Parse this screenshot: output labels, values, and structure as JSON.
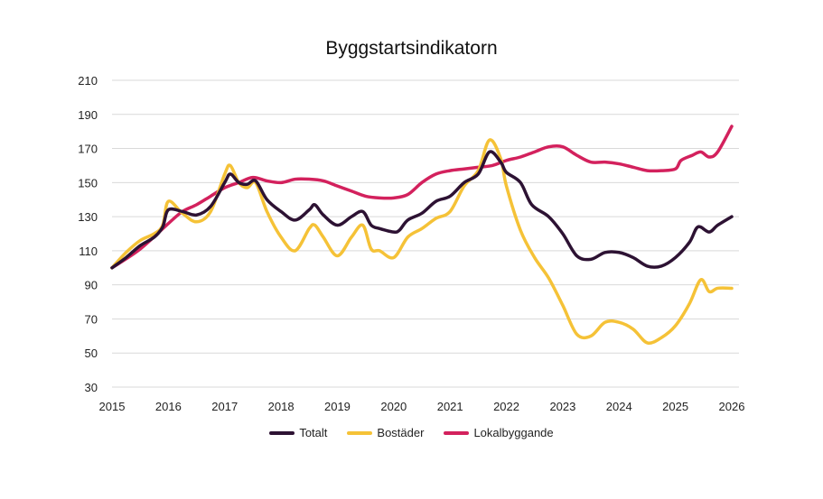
{
  "chart_data": {
    "type": "line",
    "title": "Byggstartsindikatorn",
    "xlabel": "",
    "ylabel": "",
    "xlim": [
      2015,
      2026
    ],
    "ylim": [
      30,
      210
    ],
    "yticks": [
      30,
      50,
      70,
      90,
      110,
      130,
      150,
      170,
      190,
      210
    ],
    "xticks": [
      2015,
      2016,
      2017,
      2018,
      2019,
      2020,
      2021,
      2022,
      2023,
      2024,
      2025,
      2026
    ],
    "grid": true,
    "legend": "bottom",
    "series": [
      {
        "name": "Totalt",
        "color": "#2d1233",
        "points": [
          [
            2015,
            100
          ],
          [
            2015.25,
            106
          ],
          [
            2015.5,
            113
          ],
          [
            2015.75,
            118
          ],
          [
            2015.9,
            124
          ],
          [
            2016,
            134
          ],
          [
            2016.25,
            133
          ],
          [
            2016.5,
            131
          ],
          [
            2016.75,
            136
          ],
          [
            2017,
            150
          ],
          [
            2017.1,
            155
          ],
          [
            2017.25,
            150
          ],
          [
            2017.4,
            149
          ],
          [
            2017.55,
            151
          ],
          [
            2017.75,
            140
          ],
          [
            2018,
            133
          ],
          [
            2018.25,
            128
          ],
          [
            2018.5,
            134
          ],
          [
            2018.6,
            137
          ],
          [
            2018.75,
            131
          ],
          [
            2019,
            125
          ],
          [
            2019.25,
            130
          ],
          [
            2019.45,
            133
          ],
          [
            2019.6,
            125
          ],
          [
            2019.75,
            123
          ],
          [
            2020,
            121
          ],
          [
            2020.1,
            122
          ],
          [
            2020.25,
            128
          ],
          [
            2020.5,
            132
          ],
          [
            2020.75,
            139
          ],
          [
            2021,
            142
          ],
          [
            2021.25,
            150
          ],
          [
            2021.5,
            155
          ],
          [
            2021.7,
            168
          ],
          [
            2021.9,
            162
          ],
          [
            2022,
            156
          ],
          [
            2022.25,
            150
          ],
          [
            2022.45,
            137
          ],
          [
            2022.75,
            130
          ],
          [
            2023,
            120
          ],
          [
            2023.25,
            107
          ],
          [
            2023.5,
            105
          ],
          [
            2023.75,
            109
          ],
          [
            2024,
            109
          ],
          [
            2024.25,
            106
          ],
          [
            2024.5,
            101
          ],
          [
            2024.75,
            101
          ],
          [
            2025,
            106
          ],
          [
            2025.25,
            115
          ],
          [
            2025.4,
            124
          ],
          [
            2025.6,
            121
          ],
          [
            2025.75,
            125
          ],
          [
            2026,
            130
          ]
        ]
      },
      {
        "name": "Bostäder",
        "color": "#f5c237",
        "points": [
          [
            2015,
            100
          ],
          [
            2015.25,
            109
          ],
          [
            2015.5,
            116
          ],
          [
            2015.75,
            120
          ],
          [
            2015.9,
            125
          ],
          [
            2016,
            139
          ],
          [
            2016.25,
            132
          ],
          [
            2016.5,
            127
          ],
          [
            2016.75,
            133
          ],
          [
            2017,
            155
          ],
          [
            2017.1,
            160
          ],
          [
            2017.25,
            150
          ],
          [
            2017.4,
            147
          ],
          [
            2017.55,
            150
          ],
          [
            2017.75,
            133
          ],
          [
            2018,
            118
          ],
          [
            2018.25,
            110
          ],
          [
            2018.5,
            123
          ],
          [
            2018.6,
            125
          ],
          [
            2018.75,
            118
          ],
          [
            2019,
            107
          ],
          [
            2019.25,
            118
          ],
          [
            2019.45,
            125
          ],
          [
            2019.6,
            111
          ],
          [
            2019.75,
            110
          ],
          [
            2020,
            106
          ],
          [
            2020.25,
            118
          ],
          [
            2020.5,
            123
          ],
          [
            2020.75,
            129
          ],
          [
            2021,
            133
          ],
          [
            2021.25,
            148
          ],
          [
            2021.5,
            157
          ],
          [
            2021.7,
            175
          ],
          [
            2021.9,
            164
          ],
          [
            2022,
            148
          ],
          [
            2022.25,
            122
          ],
          [
            2022.5,
            106
          ],
          [
            2022.75,
            94
          ],
          [
            2023,
            78
          ],
          [
            2023.25,
            61
          ],
          [
            2023.5,
            60
          ],
          [
            2023.75,
            68
          ],
          [
            2024,
            68
          ],
          [
            2024.25,
            64
          ],
          [
            2024.5,
            56
          ],
          [
            2024.75,
            59
          ],
          [
            2025,
            66
          ],
          [
            2025.25,
            79
          ],
          [
            2025.45,
            93
          ],
          [
            2025.6,
            86
          ],
          [
            2025.75,
            88
          ],
          [
            2026,
            88
          ]
        ]
      },
      {
        "name": "Lokalbyggande",
        "color": "#d3215d",
        "points": [
          [
            2015,
            100
          ],
          [
            2015.5,
            111
          ],
          [
            2016,
            126
          ],
          [
            2016.25,
            133
          ],
          [
            2016.5,
            137
          ],
          [
            2016.75,
            142
          ],
          [
            2017,
            147
          ],
          [
            2017.25,
            150
          ],
          [
            2017.5,
            153
          ],
          [
            2017.75,
            151
          ],
          [
            2018,
            150
          ],
          [
            2018.25,
            152
          ],
          [
            2018.5,
            152
          ],
          [
            2018.75,
            151
          ],
          [
            2019,
            148
          ],
          [
            2019.25,
            145
          ],
          [
            2019.5,
            142
          ],
          [
            2019.75,
            141
          ],
          [
            2020,
            141
          ],
          [
            2020.25,
            143
          ],
          [
            2020.5,
            150
          ],
          [
            2020.75,
            155
          ],
          [
            2021,
            157
          ],
          [
            2021.25,
            158
          ],
          [
            2021.5,
            159
          ],
          [
            2021.75,
            160
          ],
          [
            2022,
            163
          ],
          [
            2022.25,
            165
          ],
          [
            2022.5,
            168
          ],
          [
            2022.75,
            171
          ],
          [
            2023,
            171
          ],
          [
            2023.25,
            166
          ],
          [
            2023.5,
            162
          ],
          [
            2023.75,
            162
          ],
          [
            2024,
            161
          ],
          [
            2024.25,
            159
          ],
          [
            2024.5,
            157
          ],
          [
            2024.75,
            157
          ],
          [
            2025,
            158
          ],
          [
            2025.1,
            163
          ],
          [
            2025.3,
            166
          ],
          [
            2025.45,
            168
          ],
          [
            2025.6,
            165
          ],
          [
            2025.75,
            168
          ],
          [
            2026,
            183
          ]
        ]
      }
    ]
  }
}
